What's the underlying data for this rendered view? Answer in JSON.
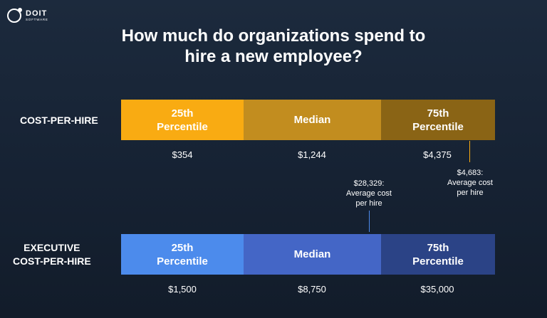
{
  "logo": {
    "name": "DOIT",
    "sub": "SOFTWARE"
  },
  "chart_data": {
    "type": "bar",
    "title": "How much do organizations spend to\nhire a new employee?",
    "rows": [
      {
        "label": "COST-PER-HIRE",
        "segments": [
          "25th\nPercentile",
          "Median",
          "75th\nPercentile"
        ],
        "values": [
          "$354",
          "$1,244",
          "$4,375"
        ],
        "colors": [
          "#f9ab12",
          "#c28d1f",
          "#8a6415"
        ],
        "annotation": {
          "text": "$4,683:\nAverage cost\nper hire",
          "color": "#f9ab12"
        }
      },
      {
        "label": "EXECUTIVE\nCOST-PER-HIRE",
        "segments": [
          "25th\nPercentile",
          "Median",
          "75th\nPercentile"
        ],
        "values": [
          "$1,500",
          "$8,750",
          "$35,000"
        ],
        "colors": [
          "#4c8bec",
          "#4466c6",
          "#2b4386"
        ],
        "annotation": {
          "text": "$28,329:\nAverage cost\nper hire",
          "color": "#4c8bec"
        }
      }
    ]
  }
}
